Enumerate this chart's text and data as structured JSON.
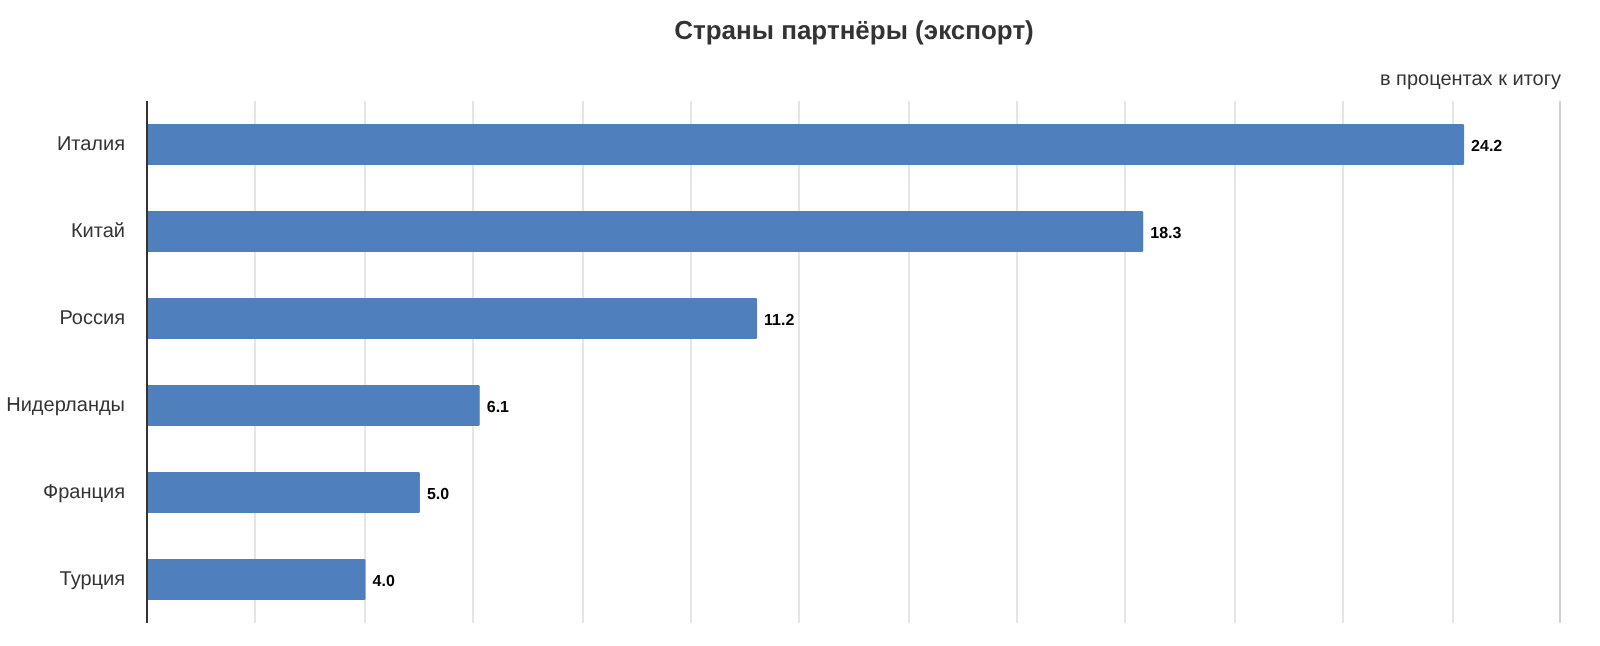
{
  "chart_data": {
    "type": "bar",
    "orientation": "horizontal",
    "title": "Страны партнёры (экспорт)",
    "subtitle": "в процентах к итогу",
    "categories": [
      "Италия",
      "Китай",
      "Россия",
      "Нидерланды",
      "Франция",
      "Турция"
    ],
    "values": [
      24.2,
      18.3,
      11.2,
      6.1,
      5.0,
      4.0
    ],
    "value_labels": [
      "24.2",
      "18.3",
      "11.2",
      "6.1",
      "5.0",
      "4.0"
    ],
    "color": "#4f7fbc",
    "xlim": [
      0,
      26
    ],
    "xticks": [
      {
        "value": 0,
        "label": null
      },
      {
        "value": 2,
        "label": null
      },
      {
        "value": 4,
        "label": null
      },
      {
        "value": 6,
        "label": null
      },
      {
        "value": 8,
        "label": null
      },
      {
        "value": 10,
        "label": null
      },
      {
        "value": 12,
        "label": null
      },
      {
        "value": 14,
        "label": null
      },
      {
        "value": 16,
        "label": null
      },
      {
        "value": 18,
        "label": null
      },
      {
        "value": 20,
        "label": null
      },
      {
        "value": 22,
        "label": null
      },
      {
        "value": 24,
        "label": null
      },
      {
        "value": 26,
        "label": null
      }
    ],
    "grid": "x",
    "tick_labels": "y"
  }
}
